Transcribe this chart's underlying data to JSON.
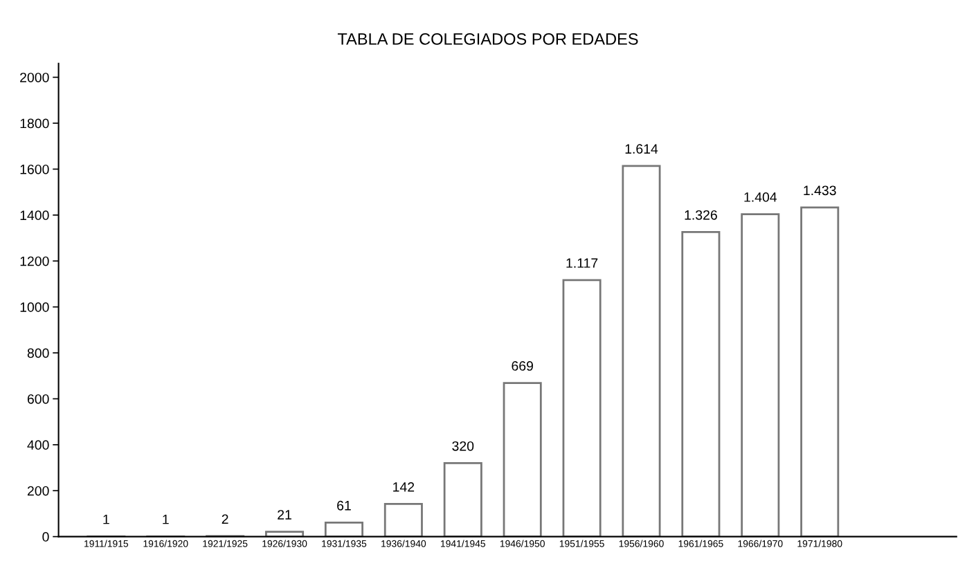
{
  "chart_data": {
    "type": "bar",
    "title": "TABLA DE COLEGIADOS POR EDADES",
    "categories": [
      "1911/1915",
      "1916/1920",
      "1921/1925",
      "1926/1930",
      "1931/1935",
      "1936/1940",
      "1941/1945",
      "1946/1950",
      "1951/1955",
      "1956/1960",
      "1961/1965",
      "1966/1970",
      "1971/1980"
    ],
    "values": [
      1,
      1,
      2,
      21,
      61,
      142,
      320,
      669,
      1117,
      1614,
      1326,
      1404,
      1433
    ],
    "value_labels": [
      "1",
      "1",
      "2",
      "21",
      "61",
      "142",
      "320",
      "669",
      "1.117",
      "1.614",
      "1.326",
      "1.404",
      "1.433"
    ],
    "color": "#ffffff",
    "ylim": [
      0,
      2060
    ],
    "yticks": [
      0,
      200,
      400,
      600,
      800,
      1000,
      1200,
      1400,
      1600,
      1800,
      2000
    ],
    "grid": false,
    "legend": false
  }
}
